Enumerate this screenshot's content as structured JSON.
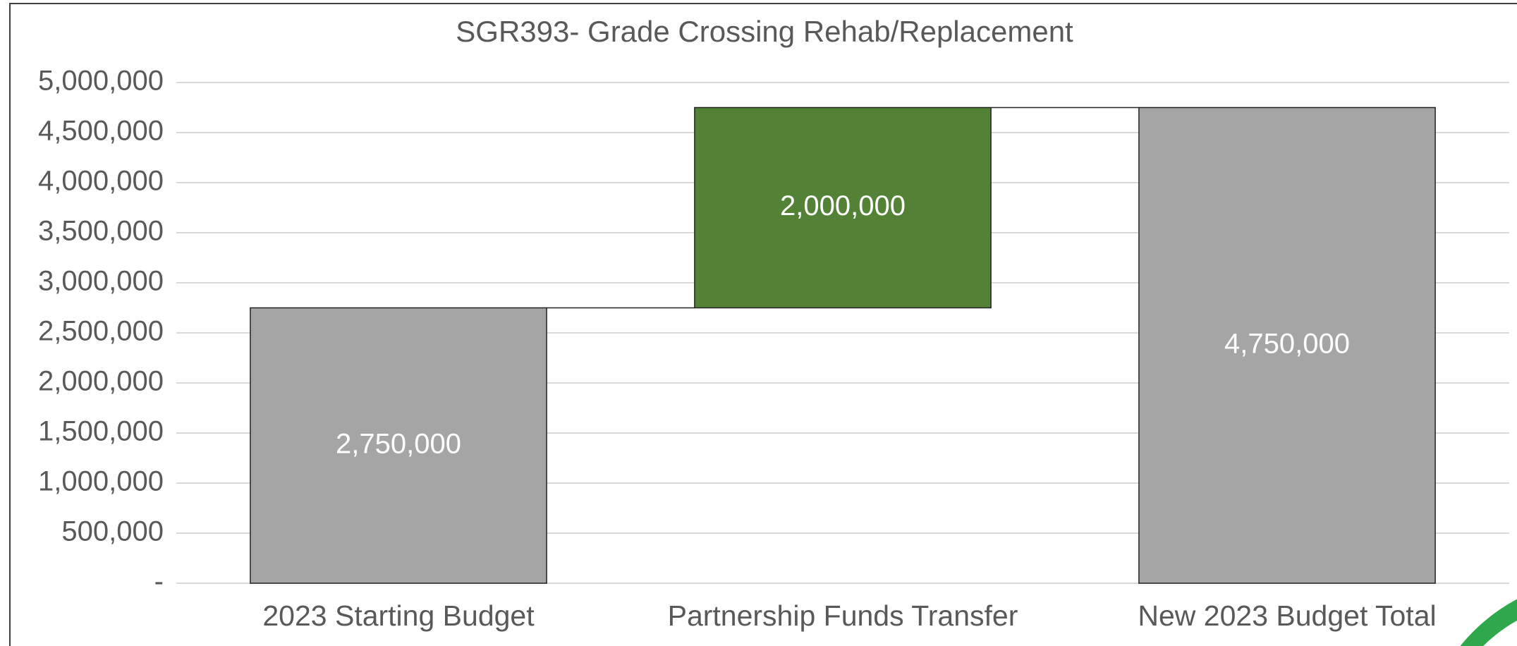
{
  "chart_data": {
    "type": "waterfall",
    "title": "SGR393- Grade Crossing Rehab/Replacement",
    "categories": [
      "2023 Starting Budget",
      "Partnership Funds Transfer",
      "New 2023 Budget Total"
    ],
    "values": [
      2750000,
      2000000,
      4750000
    ],
    "value_labels": [
      "2,750,000",
      "2,000,000",
      "4,750,000"
    ],
    "is_total": [
      true,
      false,
      true
    ],
    "colors": [
      "#a5a5a5",
      "#538135",
      "#a5a5a5"
    ],
    "ylim": [
      0,
      5000000
    ],
    "yticks": [
      {
        "value": 0,
        "label": "-"
      },
      {
        "value": 500000,
        "label": "500,000"
      },
      {
        "value": 1000000,
        "label": "1,000,000"
      },
      {
        "value": 1500000,
        "label": "1,500,000"
      },
      {
        "value": 2000000,
        "label": "2,000,000"
      },
      {
        "value": 2500000,
        "label": "2,500,000"
      },
      {
        "value": 3000000,
        "label": "3,000,000"
      },
      {
        "value": 3500000,
        "label": "3,500,000"
      },
      {
        "value": 4000000,
        "label": "4,000,000"
      },
      {
        "value": 4500000,
        "label": "4,500,000"
      },
      {
        "value": 5000000,
        "label": "5,000,000"
      }
    ],
    "grid": true
  }
}
